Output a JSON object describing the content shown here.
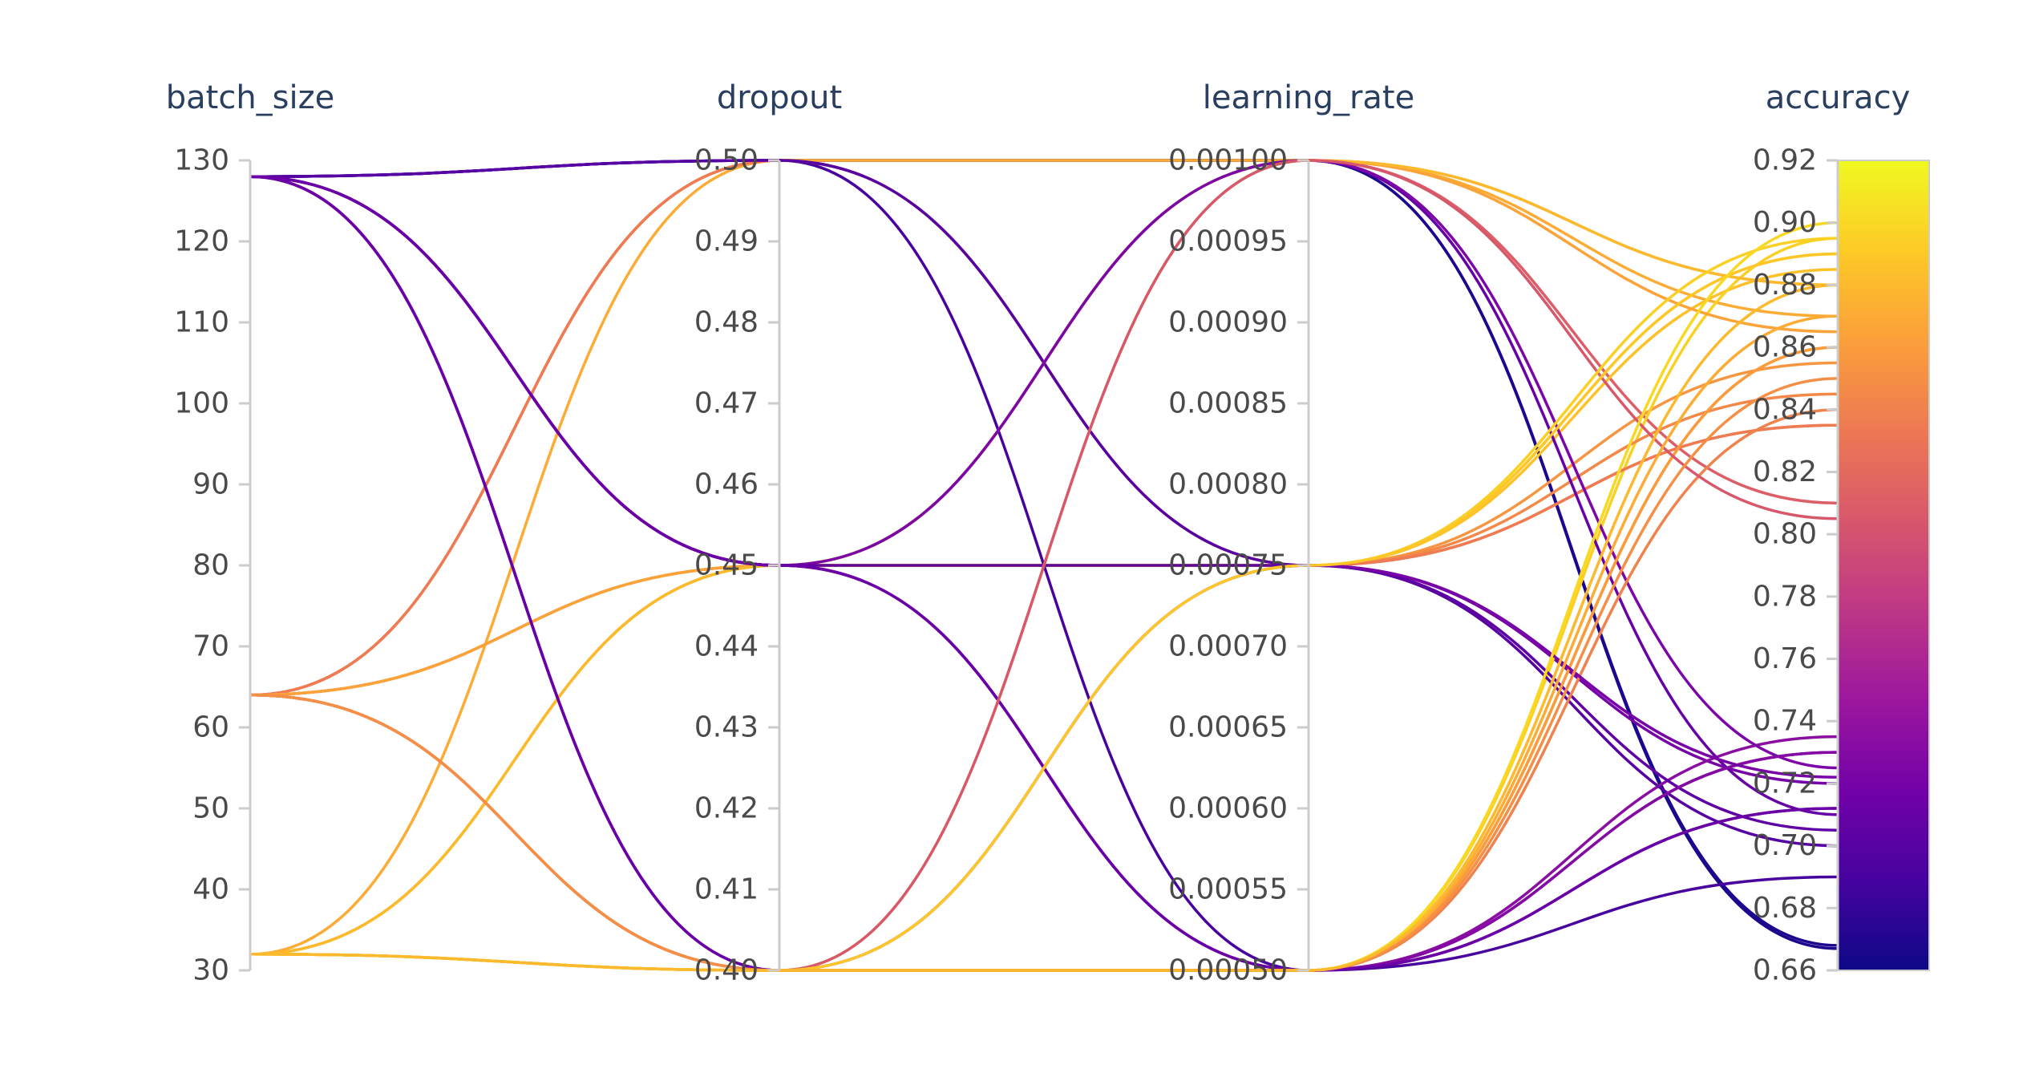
{
  "chart_data": {
    "type": "parallel_coordinates",
    "title": "",
    "axes": [
      {
        "name": "batch_size",
        "label": "batch_size",
        "range": [
          30,
          130
        ],
        "ticks": [
          "130",
          "120",
          "110",
          "100",
          "90",
          "80",
          "70",
          "60",
          "50",
          "40",
          "30"
        ],
        "tick_values": [
          130,
          120,
          110,
          100,
          90,
          80,
          70,
          60,
          50,
          40,
          30
        ]
      },
      {
        "name": "dropout",
        "label": "dropout",
        "range": [
          0.4,
          0.5
        ],
        "ticks": [
          "0.50",
          "0.49",
          "0.48",
          "0.47",
          "0.46",
          "0.45",
          "0.44",
          "0.43",
          "0.42",
          "0.41",
          "0.40"
        ],
        "tick_values": [
          0.5,
          0.49,
          0.48,
          0.47,
          0.46,
          0.45,
          0.44,
          0.43,
          0.42,
          0.41,
          0.4
        ]
      },
      {
        "name": "learning_rate",
        "label": "learning_rate",
        "range": [
          0.0005,
          0.001
        ],
        "ticks": [
          "0.00100",
          "0.00095",
          "0.00090",
          "0.00085",
          "0.00080",
          "0.00075",
          "0.00070",
          "0.00065",
          "0.00060",
          "0.00055",
          "0.00050"
        ],
        "tick_values": [
          0.001,
          0.00095,
          0.0009,
          0.00085,
          0.0008,
          0.00075,
          0.0007,
          0.00065,
          0.0006,
          0.00055,
          0.0005
        ]
      },
      {
        "name": "accuracy",
        "label": "accuracy",
        "range": [
          0.66,
          0.92
        ],
        "ticks": [
          "0.92",
          "0.90",
          "0.88",
          "0.86",
          "0.84",
          "0.82",
          "0.80",
          "0.78",
          "0.76",
          "0.74",
          "0.72",
          "0.70",
          "0.68",
          "0.66"
        ],
        "tick_values": [
          0.92,
          0.9,
          0.88,
          0.86,
          0.84,
          0.82,
          0.8,
          0.78,
          0.76,
          0.74,
          0.72,
          0.7,
          0.68,
          0.66
        ]
      }
    ],
    "colorscale": {
      "name": "plasma",
      "color_by": "accuracy",
      "range": [
        0.66,
        0.92
      ],
      "stops": [
        "#0d0887",
        "#46039f",
        "#7201a8",
        "#9c179e",
        "#bd3786",
        "#d8576b",
        "#ed7953",
        "#fb9f3a",
        "#fdca26",
        "#f0f921"
      ]
    },
    "runs": [
      [
        128,
        0.5,
        0.001,
        0.667
      ],
      [
        128,
        0.5,
        0.001,
        0.668
      ],
      [
        128,
        0.45,
        0.00075,
        0.72
      ],
      [
        128,
        0.45,
        0.0005,
        0.73
      ],
      [
        128,
        0.4,
        0.0005,
        0.735
      ],
      [
        64,
        0.5,
        0.001,
        0.81
      ],
      [
        64,
        0.45,
        0.00075,
        0.835
      ],
      [
        64,
        0.45,
        0.00075,
        0.855
      ],
      [
        64,
        0.4,
        0.0005,
        0.86
      ],
      [
        32,
        0.5,
        0.001,
        0.87
      ],
      [
        32,
        0.45,
        0.00075,
        0.885
      ],
      [
        32,
        0.45,
        0.00075,
        0.89
      ],
      [
        32,
        0.4,
        0.0005,
        0.895
      ],
      [
        64,
        0.5,
        0.00075,
        0.845
      ],
      [
        128,
        0.5,
        0.0005,
        0.69
      ],
      [
        64,
        0.5,
        0.00075,
        0.835
      ],
      [
        128,
        0.5,
        0.00075,
        0.7
      ],
      [
        128,
        0.45,
        0.001,
        0.71
      ],
      [
        64,
        0.45,
        0.001,
        0.865
      ],
      [
        32,
        0.45,
        0.001,
        0.88
      ],
      [
        128,
        0.45,
        0.001,
        0.725
      ],
      [
        128,
        0.45,
        0.00075,
        0.705
      ],
      [
        128,
        0.45,
        0.0005,
        0.73
      ],
      [
        64,
        0.4,
        0.0005,
        0.84
      ],
      [
        128,
        0.45,
        0.0005,
        0.712
      ],
      [
        32,
        0.4,
        0.001,
        0.88
      ],
      [
        64,
        0.4,
        0.0005,
        0.86
      ],
      [
        64,
        0.4,
        0.001,
        0.805
      ],
      [
        32,
        0.4,
        0.00075,
        0.895
      ],
      [
        128,
        0.4,
        0.00075,
        0.722
      ],
      [
        32,
        0.4,
        0.00075,
        0.89
      ],
      [
        128,
        0.4,
        0.0005,
        0.712
      ],
      [
        32,
        0.4,
        0.0005,
        0.87
      ],
      [
        32,
        0.4,
        0.0005,
        0.9
      ],
      [
        64,
        0.4,
        0.0005,
        0.85
      ],
      [
        32,
        0.4,
        0.0005,
        0.88
      ]
    ]
  }
}
